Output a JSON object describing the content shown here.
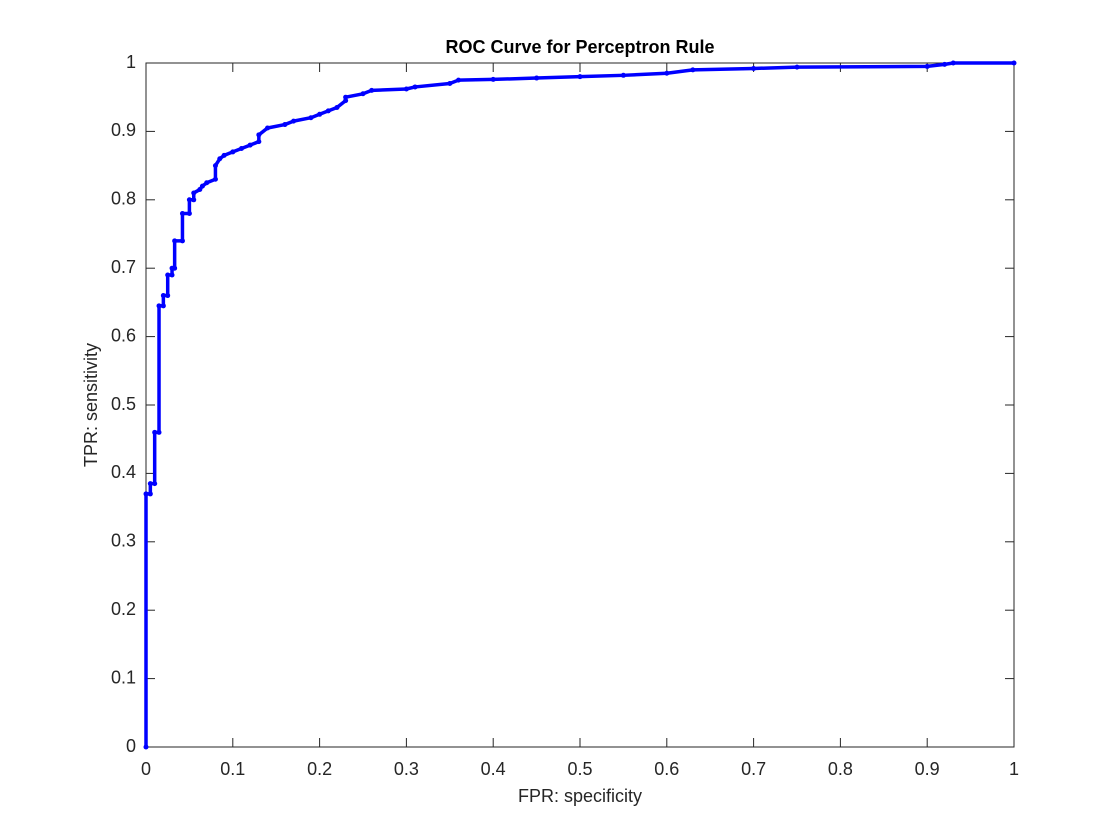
{
  "chart_data": {
    "type": "line",
    "title": "ROC Curve for Perceptron Rule",
    "x_label": "FPR: specificity",
    "y_label": "TPR: sensitivity",
    "xlim": [
      0,
      1
    ],
    "ylim": [
      0,
      1
    ],
    "xticks": [
      0,
      0.1,
      0.2,
      0.3,
      0.4,
      0.5,
      0.6,
      0.7,
      0.8,
      0.9,
      1
    ],
    "yticks": [
      0,
      0.1,
      0.2,
      0.3,
      0.4,
      0.5,
      0.6,
      0.7,
      0.8,
      0.9,
      1
    ],
    "grid": false,
    "series": [
      {
        "color": "#0000ff",
        "x": [
          0,
          0,
          0.005,
          0.005,
          0.01,
          0.01,
          0.015,
          0.015,
          0.02,
          0.02,
          0.025,
          0.025,
          0.03,
          0.03,
          0.033,
          0.033,
          0.042,
          0.042,
          0.05,
          0.05,
          0.055,
          0.055,
          0.062,
          0.065,
          0.07,
          0.08,
          0.08,
          0.085,
          0.09,
          0.1,
          0.11,
          0.12,
          0.13,
          0.13,
          0.14,
          0.16,
          0.17,
          0.19,
          0.2,
          0.21,
          0.22,
          0.23,
          0.23,
          0.25,
          0.26,
          0.3,
          0.31,
          0.35,
          0.36,
          0.4,
          0.45,
          0.5,
          0.55,
          0.6,
          0.63,
          0.7,
          0.75,
          0.9,
          0.92,
          0.93,
          1
        ],
        "values": [
          0,
          0.37,
          0.37,
          0.385,
          0.385,
          0.46,
          0.46,
          0.645,
          0.645,
          0.66,
          0.66,
          0.69,
          0.69,
          0.7,
          0.7,
          0.74,
          0.74,
          0.78,
          0.78,
          0.8,
          0.8,
          0.81,
          0.815,
          0.82,
          0.825,
          0.83,
          0.85,
          0.86,
          0.865,
          0.87,
          0.875,
          0.88,
          0.885,
          0.895,
          0.905,
          0.91,
          0.915,
          0.92,
          0.925,
          0.93,
          0.935,
          0.945,
          0.95,
          0.955,
          0.96,
          0.962,
          0.965,
          0.97,
          0.975,
          0.976,
          0.978,
          0.98,
          0.982,
          0.985,
          0.99,
          0.992,
          0.994,
          0.995,
          0.998,
          1,
          1
        ]
      }
    ]
  }
}
